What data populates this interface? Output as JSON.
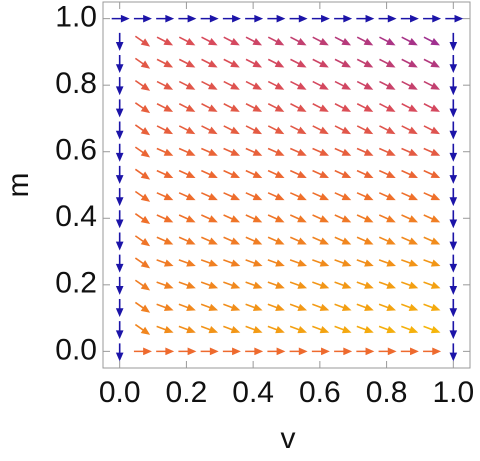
{
  "chart_data": {
    "type": "vector",
    "xlabel": "v",
    "ylabel": "m",
    "xlim": [
      -0.05,
      1.05
    ],
    "ylim": [
      -0.05,
      1.05
    ],
    "xticks": [
      {
        "value": 0,
        "label": "0.0"
      },
      0.2,
      0.4,
      0.6,
      0.8,
      {
        "value": 1,
        "label": "1.0"
      }
    ],
    "yticks": [
      {
        "value": 0,
        "label": "0.0"
      },
      0.2,
      0.4,
      0.6,
      0.8,
      {
        "value": 1,
        "label": "1.0"
      }
    ],
    "x": [
      0,
      0.0667,
      0.1333,
      0.2,
      0.2667,
      0.3333,
      0.4,
      0.4667,
      0.5333,
      0.6,
      0.6667,
      0.7333,
      0.8,
      0.8667,
      0.9333,
      1
    ],
    "y": [
      0,
      0.0667,
      0.1333,
      0.2,
      0.2667,
      0.3333,
      0.4,
      0.4667,
      0.5333,
      0.6,
      0.6667,
      0.7333,
      0.8,
      0.8667,
      0.9333,
      1
    ],
    "angle": [
      [
        -90,
        0,
        0,
        0,
        0,
        0,
        0,
        0,
        0,
        0,
        0,
        0,
        0,
        0,
        0,
        -90
      ],
      [
        -90,
        -35,
        -20,
        -20,
        -20,
        -20,
        -20,
        -20,
        -20,
        -20,
        -20,
        -20,
        -20,
        -20,
        -20,
        -90
      ],
      [
        -90,
        -35,
        -20,
        -20,
        -20,
        -20,
        -20,
        -20,
        -20,
        -20,
        -20,
        -20,
        -20,
        -20,
        -20,
        -90
      ],
      [
        -90,
        -35,
        -20,
        -20,
        -20,
        -20,
        -20,
        -20,
        -20,
        -20,
        -20,
        -20,
        -20,
        -20,
        -20,
        -90
      ],
      [
        -90,
        -35,
        -20,
        -20,
        -20,
        -20,
        -20,
        -20,
        -20,
        -20,
        -20,
        -20,
        -20,
        -20,
        -20,
        -90
      ],
      [
        -90,
        -35,
        -24,
        -24,
        -24,
        -24,
        -24,
        -24,
        -24,
        -24,
        -24,
        -24,
        -24,
        -24,
        -24,
        -90
      ],
      [
        -90,
        -35,
        -24,
        -24,
        -24,
        -24,
        -24,
        -24,
        -24,
        -24,
        -24,
        -24,
        -24,
        -24,
        -24,
        -90
      ],
      [
        -90,
        -35,
        -24,
        -24,
        -24,
        -24,
        -24,
        -24,
        -24,
        -24,
        -24,
        -24,
        -24,
        -24,
        -24,
        -90
      ],
      [
        -90,
        -35,
        -24,
        -24,
        -24,
        -24,
        -24,
        -24,
        -24,
        -24,
        -24,
        -24,
        -24,
        -24,
        -24,
        -90
      ],
      [
        -90,
        -35,
        -24,
        -24,
        -24,
        -24,
        -24,
        -24,
        -24,
        -24,
        -24,
        -24,
        -24,
        -24,
        -24,
        -90
      ],
      [
        -90,
        -35,
        -27,
        -27,
        -27,
        -27,
        -27,
        -27,
        -27,
        -27,
        -27,
        -27,
        -27,
        -27,
        -27,
        -90
      ],
      [
        -90,
        -35,
        -27,
        -27,
        -27,
        -27,
        -27,
        -27,
        -27,
        -27,
        -27,
        -27,
        -27,
        -27,
        -27,
        -90
      ],
      [
        -90,
        -35,
        -27,
        -27,
        -27,
        -27,
        -27,
        -27,
        -27,
        -27,
        -27,
        -27,
        -27,
        -27,
        -27,
        -90
      ],
      [
        -90,
        -35,
        -27,
        -27,
        -27,
        -27,
        -27,
        -27,
        -27,
        -27,
        -27,
        -27,
        -27,
        -27,
        -27,
        -90
      ],
      [
        -90,
        -35,
        -27,
        -27,
        -27,
        -27,
        -27,
        -27,
        -27,
        -27,
        -27,
        -27,
        -27,
        -27,
        -27,
        -90
      ],
      [
        0,
        0,
        0,
        0,
        0,
        0,
        0,
        0,
        0,
        0,
        0,
        0,
        0,
        0,
        0,
        0
      ]
    ],
    "magnitude": [
      [
        0,
        60,
        60,
        60,
        60,
        60,
        60,
        60,
        60,
        60,
        60,
        60,
        60,
        60,
        60,
        0
      ],
      [
        0,
        70,
        72,
        73,
        75,
        76,
        78,
        79,
        81,
        82,
        84,
        85,
        87,
        88,
        90,
        0
      ],
      [
        0,
        68,
        69,
        71,
        72,
        73,
        75,
        76,
        77,
        78,
        80,
        81,
        82,
        84,
        85,
        0
      ],
      [
        0,
        67,
        68,
        69,
        70,
        71,
        72,
        73,
        75,
        76,
        77,
        78,
        79,
        80,
        81,
        0
      ],
      [
        0,
        65,
        66,
        67,
        68,
        68,
        69,
        70,
        71,
        72,
        73,
        73,
        74,
        75,
        76,
        0
      ],
      [
        0,
        64,
        65,
        65,
        66,
        66,
        67,
        68,
        68,
        69,
        70,
        70,
        71,
        71,
        72,
        0
      ],
      [
        0,
        62,
        62,
        63,
        63,
        64,
        64,
        64,
        65,
        65,
        65,
        66,
        66,
        67,
        67,
        0
      ],
      [
        0,
        61,
        61,
        61,
        61,
        61,
        61,
        61,
        62,
        62,
        62,
        62,
        62,
        62,
        62,
        0
      ],
      [
        0,
        59,
        59,
        59,
        59,
        59,
        59,
        59,
        58,
        58,
        58,
        58,
        58,
        58,
        58,
        0
      ],
      [
        0,
        58,
        58,
        57,
        57,
        56,
        56,
        56,
        55,
        55,
        55,
        54,
        54,
        53,
        53,
        0
      ],
      [
        0,
        56,
        55,
        55,
        54,
        54,
        53,
        53,
        52,
        52,
        51,
        51,
        50,
        50,
        49,
        0
      ],
      [
        0,
        55,
        54,
        53,
        52,
        52,
        51,
        50,
        49,
        48,
        47,
        47,
        46,
        45,
        44,
        0
      ],
      [
        0,
        53,
        52,
        51,
        50,
        49,
        48,
        47,
        45,
        44,
        43,
        42,
        41,
        40,
        39,
        0
      ],
      [
        0,
        52,
        51,
        49,
        48,
        47,
        45,
        44,
        43,
        42,
        40,
        39,
        38,
        36,
        35,
        0
      ],
      [
        0,
        50,
        48,
        47,
        45,
        44,
        42,
        41,
        39,
        38,
        36,
        35,
        33,
        32,
        30,
        0
      ],
      [
        0,
        0,
        0,
        0,
        0,
        0,
        0,
        0,
        0,
        0,
        0,
        0,
        0,
        0,
        0,
        0
      ]
    ],
    "color_stops": [
      {
        "value": 0,
        "color": "#1c14a8"
      },
      {
        "value": 30,
        "color": "#a0308f"
      },
      {
        "value": 45,
        "color": "#d84a5c"
      },
      {
        "value": 60,
        "color": "#ee6a2e"
      },
      {
        "value": 75,
        "color": "#f29418"
      },
      {
        "value": 90,
        "color": "#f5b50a"
      }
    ]
  }
}
